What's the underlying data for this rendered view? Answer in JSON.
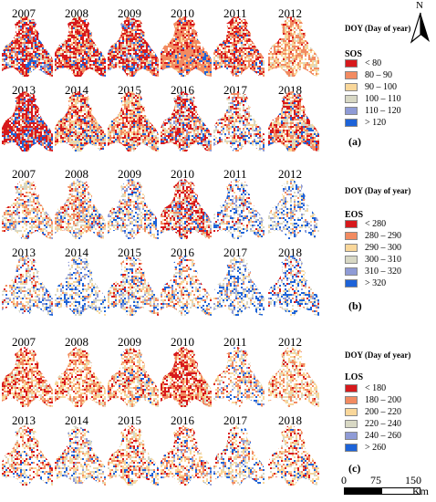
{
  "legend_title": "DOY (Day of year)",
  "years_top": [
    "2007",
    "2008",
    "2009",
    "2010",
    "2011",
    "2012"
  ],
  "years_bottom": [
    "2013",
    "2014",
    "2015",
    "2016",
    "2017",
    "2018"
  ],
  "panels": [
    {
      "label": "(a)",
      "variable": "SOS",
      "classes": [
        {
          "label": "< 80",
          "color": "#d7191c"
        },
        {
          "label": "80 – 90",
          "color": "#f28b61"
        },
        {
          "label": "90 – 100",
          "color": "#f9d79a"
        },
        {
          "label": "100 – 110",
          "color": "#d8d8c4"
        },
        {
          "label": "110 – 120",
          "color": "#8f9bd6"
        },
        {
          "label": "> 120",
          "color": "#1d63d8"
        }
      ],
      "weights_top": [
        [
          5,
          3,
          1,
          1,
          1,
          2
        ],
        [
          5,
          3,
          1,
          1,
          0,
          1
        ],
        [
          5,
          3,
          1,
          1,
          1,
          1
        ],
        [
          2,
          7,
          1,
          0,
          0,
          1
        ],
        [
          4,
          4,
          1,
          1,
          0,
          1
        ],
        [
          1,
          4,
          3,
          1,
          0,
          0
        ]
      ],
      "weights_bottom": [
        [
          7,
          2,
          0,
          1,
          1,
          2
        ],
        [
          3,
          3,
          3,
          2,
          0,
          1
        ],
        [
          3,
          3,
          3,
          2,
          0,
          1
        ],
        [
          4,
          2,
          1,
          2,
          1,
          1
        ],
        [
          2,
          2,
          2,
          2,
          1,
          1
        ],
        [
          3,
          3,
          2,
          2,
          0,
          1
        ]
      ],
      "density_top": [
        0.85,
        0.85,
        0.85,
        0.9,
        0.8,
        0.75
      ],
      "density_bottom": [
        0.9,
        0.85,
        0.85,
        0.8,
        0.6,
        0.85
      ]
    },
    {
      "label": "(b)",
      "variable": "EOS",
      "classes": [
        {
          "label": "< 280",
          "color": "#d7191c"
        },
        {
          "label": "280 – 290",
          "color": "#f28b61"
        },
        {
          "label": "290 – 300",
          "color": "#f9d79a"
        },
        {
          "label": "300 – 310",
          "color": "#d8d8c4"
        },
        {
          "label": "310 – 320",
          "color": "#8f9bd6"
        },
        {
          "label": "> 320",
          "color": "#1d63d8"
        }
      ],
      "weights_top": [
        [
          1,
          3,
          2,
          3,
          1,
          1
        ],
        [
          1,
          3,
          2,
          3,
          1,
          1
        ],
        [
          1,
          2,
          2,
          3,
          2,
          2
        ],
        [
          5,
          3,
          1,
          2,
          1,
          1
        ],
        [
          1,
          1,
          1,
          3,
          2,
          3
        ],
        [
          0,
          1,
          1,
          3,
          2,
          3
        ]
      ],
      "weights_bottom": [
        [
          1,
          2,
          2,
          3,
          2,
          2
        ],
        [
          0,
          1,
          2,
          3,
          2,
          3
        ],
        [
          1,
          2,
          2,
          3,
          1,
          2
        ],
        [
          1,
          3,
          2,
          2,
          1,
          2
        ],
        [
          0,
          1,
          1,
          3,
          2,
          3
        ],
        [
          1,
          1,
          1,
          3,
          2,
          4
        ]
      ],
      "density_top": [
        0.6,
        0.65,
        0.6,
        0.75,
        0.5,
        0.45
      ],
      "density_bottom": [
        0.55,
        0.5,
        0.6,
        0.55,
        0.5,
        0.55
      ]
    },
    {
      "label": "(c)",
      "variable": "LOS",
      "classes": [
        {
          "label": "< 180",
          "color": "#d7191c"
        },
        {
          "label": "180 – 200",
          "color": "#f28b61"
        },
        {
          "label": "200 – 220",
          "color": "#f9d79a"
        },
        {
          "label": "220 – 240",
          "color": "#d8d8c4"
        },
        {
          "label": "240 – 260",
          "color": "#8f9bd6"
        },
        {
          "label": "> 260",
          "color": "#1d63d8"
        }
      ],
      "weights_top": [
        [
          3,
          4,
          3,
          1,
          0,
          0
        ],
        [
          2,
          4,
          4,
          1,
          0,
          0
        ],
        [
          2,
          4,
          3,
          2,
          0,
          1
        ],
        [
          5,
          4,
          2,
          1,
          0,
          0
        ],
        [
          1,
          3,
          3,
          2,
          1,
          1
        ],
        [
          1,
          3,
          4,
          2,
          0,
          0
        ]
      ],
      "weights_bottom": [
        [
          2,
          3,
          3,
          2,
          0,
          1
        ],
        [
          1,
          2,
          4,
          3,
          1,
          1
        ],
        [
          2,
          3,
          4,
          2,
          0,
          1
        ],
        [
          2,
          4,
          3,
          1,
          1,
          1
        ],
        [
          1,
          2,
          3,
          3,
          1,
          2
        ],
        [
          2,
          3,
          4,
          2,
          0,
          1
        ]
      ],
      "density_top": [
        0.75,
        0.7,
        0.7,
        0.8,
        0.55,
        0.6
      ],
      "density_bottom": [
        0.55,
        0.55,
        0.6,
        0.6,
        0.5,
        0.6
      ]
    }
  ],
  "north_label": "N",
  "scale_bar": {
    "ticks": [
      "0",
      "75",
      "150"
    ],
    "unit": "Km"
  }
}
